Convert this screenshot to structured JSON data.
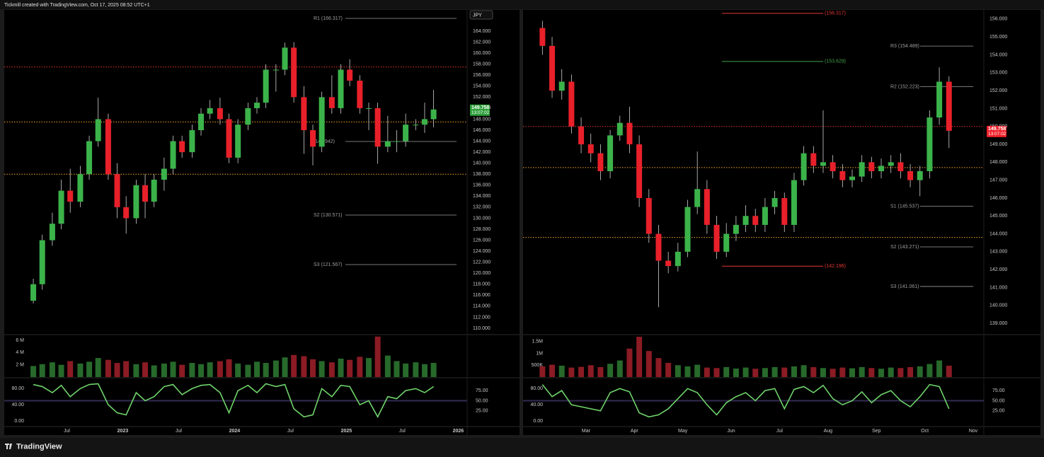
{
  "header": "Tickmill created with TradingView.com, Oct 17, 2025 08:52 UTC+1",
  "footer": "TradingView",
  "chart_data": [
    {
      "type": "candlestick",
      "currency": "JPY",
      "countdown": "13:07:02",
      "up_color": "#3bb34a",
      "down_color": "#e8202a",
      "xlim": [
        2021.94,
        2026.08
      ],
      "xticks": [
        {
          "value": 2022.5,
          "label": "Jul"
        },
        2023,
        {
          "value": 2023.5,
          "label": "Jul"
        },
        2024,
        {
          "value": 2024.5,
          "label": "Jul"
        },
        2025,
        {
          "value": 2025.5,
          "label": "Jul"
        },
        2026
      ],
      "ylim": [
        108.97,
        167.86
      ],
      "yticks": [
        {
          "value": 110,
          "label": "110.000"
        },
        {
          "value": 112,
          "label": "112.000"
        },
        {
          "value": 114,
          "label": "114.000"
        },
        {
          "value": 116,
          "label": "116.000"
        },
        {
          "value": 118,
          "label": "118.000"
        },
        {
          "value": 120,
          "label": "120.000"
        },
        {
          "value": 122,
          "label": "122.000"
        },
        {
          "value": 124,
          "label": "124.000"
        },
        {
          "value": 126,
          "label": "126.000"
        },
        {
          "value": 128,
          "label": "128.000"
        },
        {
          "value": 130,
          "label": "130.000"
        },
        {
          "value": 132,
          "label": "132.000"
        },
        {
          "value": 134,
          "label": "134.000"
        },
        {
          "value": 136,
          "label": "136.000"
        },
        {
          "value": 138,
          "label": "138.000"
        },
        {
          "value": 140,
          "label": "140.000"
        },
        {
          "value": 142,
          "label": "142.000"
        },
        {
          "value": 144,
          "label": "144.000"
        },
        {
          "value": 146,
          "label": "146.000"
        },
        {
          "value": 148,
          "label": "148.000"
        },
        {
          "value": 150,
          "label": "150.000"
        },
        {
          "value": 152,
          "label": "152.000"
        },
        {
          "value": 154,
          "label": "154.000"
        },
        {
          "value": 156,
          "label": "156.000"
        },
        {
          "value": 158,
          "label": "158.000"
        },
        {
          "value": 160,
          "label": "160.000"
        },
        {
          "value": 162,
          "label": "162.000"
        },
        {
          "value": 164,
          "label": "164.000"
        }
      ],
      "x": [
        2022.2,
        2022.28,
        2022.37,
        2022.45,
        2022.53,
        2022.62,
        2022.7,
        2022.78,
        2022.87,
        2022.95,
        2023.03,
        2023.12,
        2023.2,
        2023.28,
        2023.37,
        2023.45,
        2023.53,
        2023.62,
        2023.7,
        2023.78,
        2023.87,
        2023.95,
        2024.03,
        2024.12,
        2024.2,
        2024.28,
        2024.37,
        2024.45,
        2024.53,
        2024.62,
        2024.7,
        2024.78,
        2024.87,
        2024.95,
        2025.03,
        2025.12,
        2025.2,
        2025.28,
        2025.37,
        2025.45,
        2025.53,
        2025.62,
        2025.7,
        2025.78
      ],
      "open": [
        115,
        118,
        126,
        129,
        135,
        133,
        138,
        144,
        148,
        138,
        132,
        130,
        136,
        133,
        137,
        139,
        144,
        142,
        146,
        149,
        150,
        148,
        141,
        147,
        150,
        151,
        157,
        157,
        161,
        152,
        146,
        143,
        152,
        150,
        157,
        155,
        150,
        150,
        143,
        144,
        144,
        147,
        147,
        148
      ],
      "high": [
        119,
        127,
        131,
        137,
        139,
        139.5,
        145,
        151.9,
        149,
        140,
        134,
        137,
        138,
        138,
        141,
        145,
        145,
        147,
        150,
        151.5,
        151.9,
        149,
        148,
        151,
        152,
        158,
        158,
        161.9,
        162,
        154,
        147,
        153,
        156,
        158,
        158.9,
        156,
        151,
        151,
        148.6,
        146,
        149,
        148,
        151,
        153.3
      ],
      "low": [
        114.5,
        117,
        125,
        128,
        131,
        132,
        137,
        143,
        137,
        130,
        127.2,
        129,
        130,
        132,
        135,
        138,
        141,
        141,
        145,
        148,
        147,
        140,
        140,
        146,
        149,
        150,
        153,
        156,
        151,
        141.7,
        139.6,
        142,
        149,
        149,
        154,
        149,
        146,
        139.9,
        142,
        142,
        143,
        146,
        145.5,
        146.5
      ],
      "close": [
        118,
        126,
        129,
        135,
        133,
        138,
        144,
        148,
        138,
        132,
        130,
        136,
        133,
        137,
        139,
        144,
        142,
        146,
        149,
        150,
        148,
        141,
        147,
        150,
        151,
        157,
        157,
        161,
        152,
        146,
        143,
        152,
        150,
        157,
        155,
        150,
        150,
        143,
        144,
        144,
        147,
        147,
        148,
        149.758
      ],
      "levels": [
        {
          "label": "R1 (166.317)",
          "value": 166.317,
          "color": "#9e9e9e"
        },
        {
          "label": "(143.942)",
          "value": 143.942,
          "color": "#9e9e9e"
        },
        {
          "label": "S2 (130.571)",
          "value": 130.571,
          "color": "#9e9e9e"
        },
        {
          "label": "S3 (121.567)",
          "value": 121.567,
          "color": "#9e9e9e"
        }
      ],
      "hlines": [
        {
          "value": 157.5,
          "color": "#e53935"
        },
        {
          "value": 147.5,
          "color": "#f9a825"
        },
        {
          "value": 138,
          "color": "#f9a825"
        }
      ],
      "volume": {
        "ylim": [
          0,
          6800000
        ],
        "yticks": [
          {
            "value": 2000000,
            "label": "2 M"
          },
          {
            "value": 4000000,
            "label": "4 M"
          },
          {
            "value": 6000000,
            "label": "6 M"
          }
        ],
        "values": [
          1800000,
          2100000,
          2400000,
          2000000,
          2600000,
          2200000,
          2500000,
          3100000,
          2800000,
          2300000,
          2600000,
          2100000,
          2400000,
          1900000,
          2200000,
          2500000,
          2000000,
          2300000,
          2100000,
          2400000,
          2600000,
          2900000,
          2200000,
          2000000,
          2500000,
          2300000,
          2700000,
          3200000,
          3600000,
          3400000,
          2900000,
          2600000,
          2400000,
          3000000,
          2800000,
          3300000,
          3100000,
          6600000,
          3500000,
          2600000,
          2200000,
          2400000,
          2100000,
          2300000
        ]
      },
      "oscillator": {
        "color": "#6fd36a",
        "ylim": [
          -14,
          105
        ],
        "yticks": [
          {
            "value": 0,
            "label": "0.00"
          },
          {
            "value": 40,
            "label": "40.00"
          },
          {
            "value": 80,
            "label": "80.00"
          }
        ],
        "y2ticks": [
          {
            "value": 25,
            "label": "25.00"
          },
          {
            "value": 50,
            "label": "50.00"
          },
          {
            "value": 75,
            "label": "75.00"
          }
        ],
        "values": [
          90,
          85,
          70,
          88,
          60,
          80,
          90,
          92,
          40,
          20,
          15,
          70,
          50,
          60,
          85,
          90,
          65,
          80,
          88,
          90,
          70,
          20,
          75,
          88,
          70,
          92,
          85,
          90,
          30,
          10,
          15,
          80,
          60,
          88,
          85,
          40,
          50,
          10,
          60,
          55,
          75,
          80,
          70,
          85
        ]
      }
    },
    {
      "type": "candlestick",
      "countdown": "13:07:02",
      "up_color": "#3bb34a",
      "down_color": "#e8202a",
      "xlim": [
        1.7,
        11.22
      ],
      "xticks": [
        {
          "value": 3,
          "label": "Mar"
        },
        {
          "value": 4,
          "label": "Apr"
        },
        {
          "value": 5,
          "label": "May"
        },
        {
          "value": 6,
          "label": "Jun"
        },
        {
          "value": 7,
          "label": "Jul"
        },
        {
          "value": 8,
          "label": "Aug"
        },
        {
          "value": 9,
          "label": "Sep"
        },
        {
          "value": 10,
          "label": "Oct"
        },
        {
          "value": 11,
          "label": "Nov"
        }
      ],
      "ylim": [
        138.41,
        156.51
      ],
      "yticks": [
        {
          "value": 139,
          "label": "139.000"
        },
        {
          "value": 140,
          "label": "140.000"
        },
        {
          "value": 141,
          "label": "141.000"
        },
        {
          "value": 142,
          "label": "142.000"
        },
        {
          "value": 143,
          "label": "143.000"
        },
        {
          "value": 144,
          "label": "144.000"
        },
        {
          "value": 145,
          "label": "145.000"
        },
        {
          "value": 146,
          "label": "146.000"
        },
        {
          "value": 147,
          "label": "147.000"
        },
        {
          "value": 148,
          "label": "148.000"
        },
        {
          "value": 149,
          "label": "149.000"
        },
        {
          "value": 150,
          "label": "150.000"
        },
        {
          "value": 151,
          "label": "151.000"
        },
        {
          "value": 152,
          "label": "152.000"
        },
        {
          "value": 153,
          "label": "153.000"
        },
        {
          "value": 154,
          "label": "154.000"
        },
        {
          "value": 155,
          "label": "155.000"
        },
        {
          "value": 156,
          "label": "156.000"
        }
      ],
      "x": [
        2.1,
        2.3,
        2.5,
        2.7,
        2.9,
        3.1,
        3.3,
        3.5,
        3.7,
        3.9,
        4.1,
        4.3,
        4.5,
        4.7,
        4.9,
        5.1,
        5.3,
        5.5,
        5.7,
        5.9,
        6.1,
        6.3,
        6.5,
        6.7,
        6.9,
        7.1,
        7.3,
        7.5,
        7.7,
        7.9,
        8.1,
        8.3,
        8.5,
        8.7,
        8.9,
        9.1,
        9.3,
        9.5,
        9.7,
        9.9,
        10.1,
        10.3,
        10.5
      ],
      "open": [
        155.5,
        154.5,
        152,
        152.5,
        150,
        149,
        148.5,
        147.5,
        149.5,
        150.2,
        149,
        146,
        144,
        142.5,
        142.2,
        143,
        145.5,
        146.5,
        144.5,
        143,
        144,
        144.5,
        145,
        144.5,
        145.5,
        146,
        144.5,
        147,
        148.5,
        147.8,
        148,
        147.5,
        147,
        147.2,
        148,
        147.5,
        147.8,
        148,
        147.5,
        147,
        147.5,
        150.5,
        152.5
      ],
      "high": [
        155.9,
        155,
        153.2,
        152.9,
        150.5,
        149.6,
        149,
        149.8,
        150.6,
        151.1,
        149.5,
        146.5,
        144.5,
        143,
        143.5,
        145.9,
        148.6,
        147,
        145,
        144.6,
        145,
        145.6,
        145.4,
        146,
        146.4,
        146.3,
        147.4,
        148.9,
        148.9,
        150.9,
        148.4,
        147.9,
        147.6,
        148.4,
        148.3,
        148.2,
        148.4,
        148.5,
        147.9,
        147.8,
        150.9,
        153.3,
        152.8
      ],
      "low": [
        154,
        151.6,
        151.5,
        149.6,
        148.5,
        148,
        147,
        147.1,
        149.2,
        148.5,
        145.5,
        143.5,
        139.9,
        141.8,
        141.9,
        142.7,
        145.1,
        144,
        142.6,
        142.7,
        143.6,
        144.1,
        144.1,
        144.1,
        145.1,
        144.1,
        144.1,
        146.7,
        147.4,
        147.4,
        147.1,
        146.6,
        146.6,
        146.9,
        147.1,
        147.1,
        147.4,
        147.1,
        146.6,
        146.1,
        147.1,
        150.1,
        148.8
      ],
      "close": [
        154.5,
        152,
        152.5,
        150,
        149,
        148.5,
        147.5,
        149.5,
        150.2,
        149,
        146,
        144,
        142.5,
        142.2,
        143,
        145.5,
        146.5,
        144.5,
        143,
        144,
        144.5,
        145,
        144.5,
        145.5,
        146,
        144.5,
        147,
        148.5,
        147.8,
        148,
        147.5,
        147,
        147.2,
        148,
        147.5,
        147.8,
        148,
        147.5,
        147,
        147.5,
        150.5,
        152.5,
        149.758
      ],
      "levels": [
        {
          "label": "(156.317)",
          "value": 156.317,
          "color": "#e53935"
        },
        {
          "label": "(153.629)",
          "value": 153.629,
          "color": "#43a047"
        },
        {
          "label": "(142.196)",
          "value": 142.196,
          "color": "#e53935"
        },
        {
          "label": "R3 (154.489)",
          "value": 154.489,
          "color": "#9e9e9e"
        },
        {
          "label": "R2 (152.223)",
          "value": 152.223,
          "color": "#9e9e9e"
        },
        {
          "label": "S1 (145.537)",
          "value": 145.537,
          "color": "#9e9e9e"
        },
        {
          "label": "S2 (143.271)",
          "value": 143.271,
          "color": "#9e9e9e"
        },
        {
          "label": "S3 (141.061)",
          "value": 141.061,
          "color": "#9e9e9e"
        }
      ],
      "hlines": [
        {
          "value": 150,
          "color": "#e53935"
        },
        {
          "value": 147.7,
          "color": "#f9a825"
        },
        {
          "value": 143.8,
          "color": "#f9a825"
        }
      ],
      "volume": {
        "ylim": [
          0,
          1760000
        ],
        "yticks": [
          {
            "value": 500000,
            "label": "500K"
          },
          {
            "value": 1000000,
            "label": "1M"
          },
          {
            "value": 1500000,
            "label": "1.5M"
          }
        ],
        "values": [
          450000,
          520000,
          480000,
          400000,
          430000,
          500000,
          420000,
          560000,
          700000,
          1200000,
          1700000,
          1100000,
          800000,
          600000,
          500000,
          450000,
          520000,
          400000,
          380000,
          420000,
          360000,
          400000,
          350000,
          380000,
          420000,
          400000,
          450000,
          500000,
          420000,
          380000,
          350000,
          400000,
          370000,
          420000,
          380000,
          350000,
          400000,
          380000,
          420000,
          450000,
          550000,
          700000,
          480000
        ]
      },
      "oscillator": {
        "color": "#6fd36a",
        "ylim": [
          -14,
          105
        ],
        "yticks": [
          {
            "value": 0,
            "label": "0.00"
          },
          {
            "value": 40,
            "label": "40.00"
          },
          {
            "value": 80,
            "label": "80.00"
          }
        ],
        "y2ticks": [
          {
            "value": 25,
            "label": "25.00"
          },
          {
            "value": 50,
            "label": "50.00"
          },
          {
            "value": 75,
            "label": "75.00"
          }
        ],
        "values": [
          90,
          60,
          75,
          40,
          35,
          30,
          25,
          70,
          80,
          72,
          20,
          10,
          15,
          30,
          55,
          80,
          70,
          40,
          15,
          45,
          60,
          70,
          50,
          75,
          80,
          30,
          78,
          85,
          70,
          88,
          55,
          40,
          50,
          72,
          45,
          65,
          75,
          50,
          35,
          60,
          90,
          85,
          30
        ]
      }
    }
  ]
}
